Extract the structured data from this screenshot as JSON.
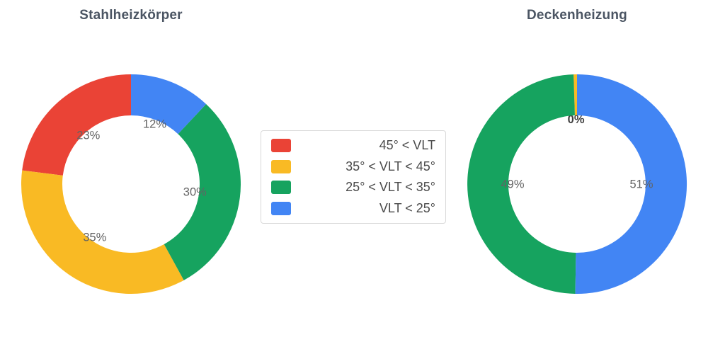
{
  "palette": [
    "#EA4336",
    "#F9BA24",
    "#16A35F",
    "#4285F4"
  ],
  "label_color": "#636363",
  "label_bold_color": "#3F3F3F",
  "legend": {
    "items": [
      {
        "label": "45° < VLT"
      },
      {
        "label": "35° < VLT < 45°"
      },
      {
        "label": "25° < VLT < 35°"
      },
      {
        "label": "VLT < 25°"
      }
    ]
  },
  "chart_data": [
    {
      "type": "pie",
      "title": "Stahlheizkörper",
      "hole_ratio": 0.63,
      "direction": "counterclockwise",
      "start_angle_deg": 90,
      "legend_position": "center-between-charts",
      "categories": [
        "45° < VLT",
        "35° < VLT < 45°",
        "25° < VLT < 35°",
        "VLT < 25°"
      ],
      "values": [
        23,
        35,
        30,
        12
      ],
      "unit": "%",
      "slice_labels": [
        {
          "text": "23%",
          "bold": false
        },
        {
          "text": "35%",
          "bold": false
        },
        {
          "text": "30%",
          "bold": false
        },
        {
          "text": "12%",
          "bold": false
        }
      ]
    },
    {
      "type": "pie",
      "title": "Deckenheizung",
      "hole_ratio": 0.63,
      "direction": "counterclockwise",
      "start_angle_deg": 90,
      "categories": [
        "45° < VLT",
        "35° < VLT < 45°",
        "25° < VLT < 35°",
        "VLT < 25°"
      ],
      "values": [
        0,
        0,
        49,
        51
      ],
      "render_values": [
        0,
        0.5,
        49.25,
        50.25
      ],
      "unit": "%",
      "slice_labels": [
        {
          "text": "",
          "bold": false
        },
        {
          "text": "0%",
          "bold": true
        },
        {
          "text": "49%",
          "bold": false
        },
        {
          "text": "51%",
          "bold": false
        }
      ]
    }
  ]
}
